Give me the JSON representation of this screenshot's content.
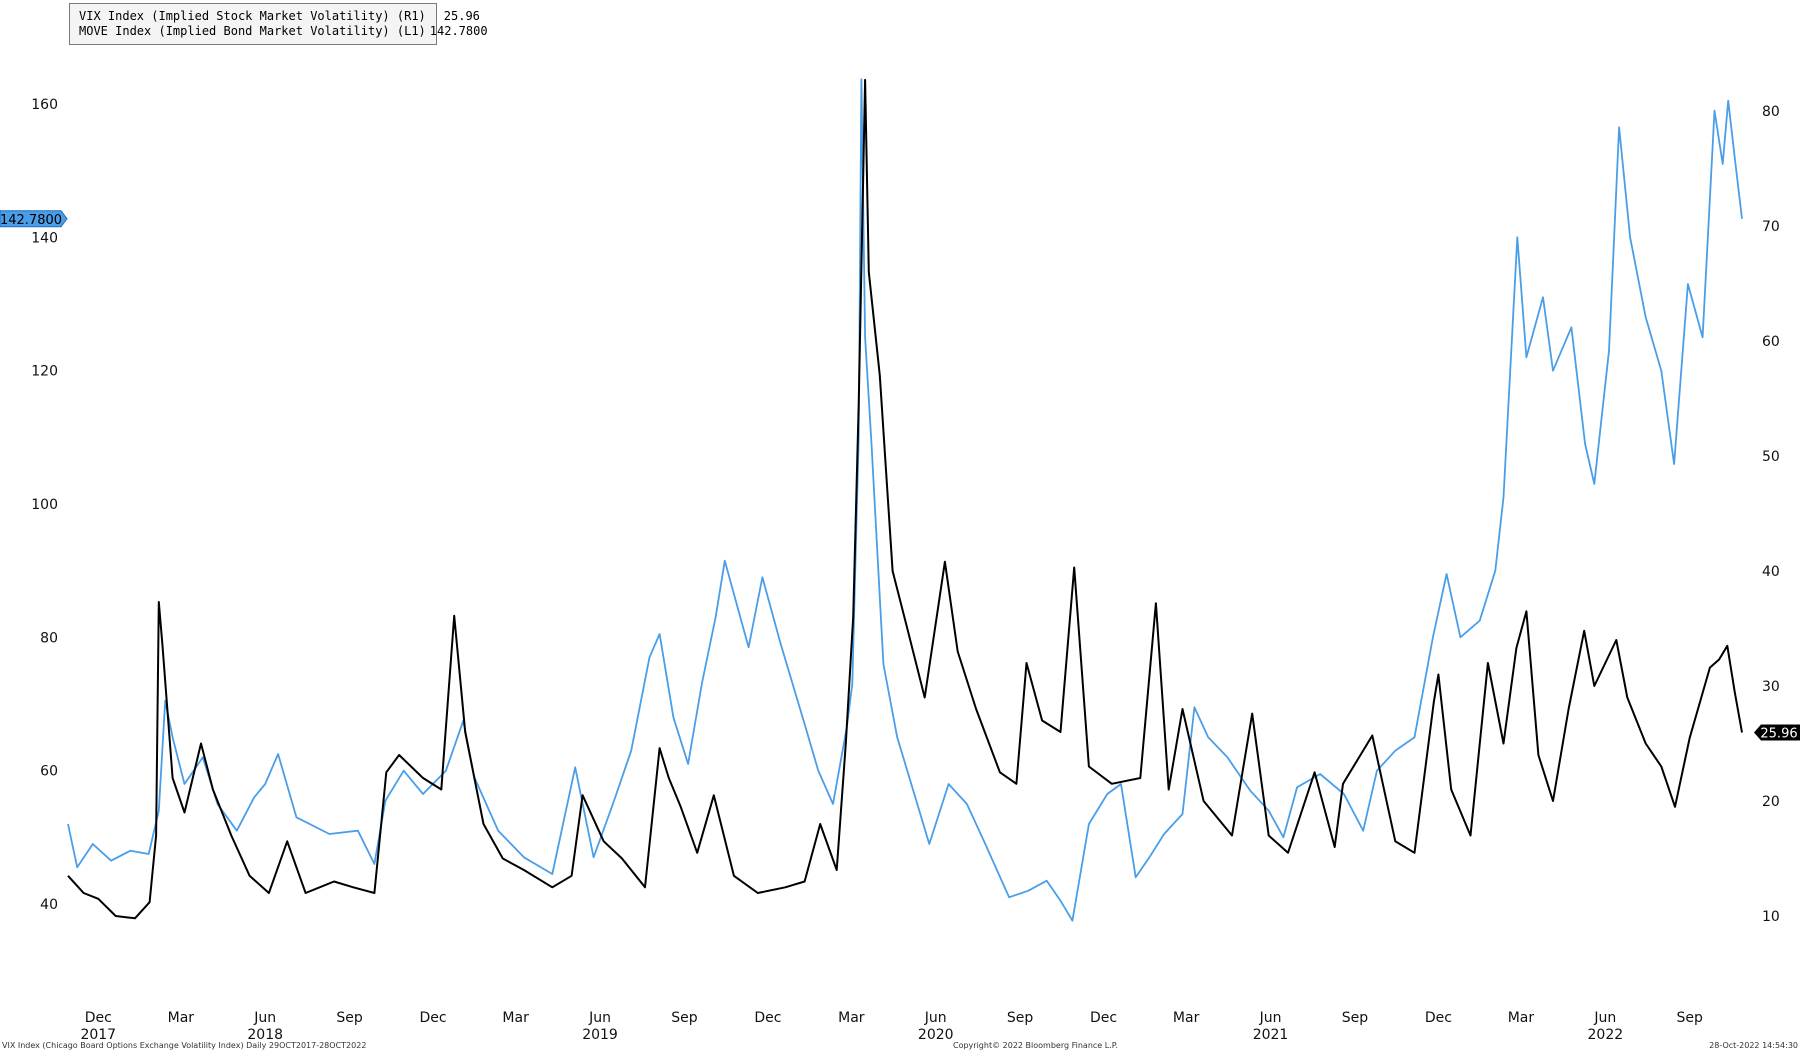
{
  "chart_data": {
    "type": "line",
    "title": "",
    "series": [
      {
        "name": "VIX Index (Implied Stock Market Volatility) (R1)",
        "axis": "right",
        "color": "#000000",
        "last_value": "25.96",
        "points": [
          [
            "2017-10-29",
            13.5
          ],
          [
            "2017-11-15",
            12.0
          ],
          [
            "2017-12-01",
            11.5
          ],
          [
            "2017-12-20",
            10.0
          ],
          [
            "2018-01-10",
            9.8
          ],
          [
            "2018-01-26",
            11.2
          ],
          [
            "2018-02-02",
            17.0
          ],
          [
            "2018-02-05",
            37.3
          ],
          [
            "2018-02-09",
            33.5
          ],
          [
            "2018-02-20",
            22.0
          ],
          [
            "2018-03-05",
            19.0
          ],
          [
            "2018-03-23",
            25.0
          ],
          [
            "2018-04-05",
            21.0
          ],
          [
            "2018-04-25",
            17.0
          ],
          [
            "2018-05-15",
            13.5
          ],
          [
            "2018-06-05",
            12.0
          ],
          [
            "2018-06-25",
            16.5
          ],
          [
            "2018-07-15",
            12.0
          ],
          [
            "2018-08-15",
            13.0
          ],
          [
            "2018-09-05",
            12.5
          ],
          [
            "2018-09-28",
            12.0
          ],
          [
            "2018-10-11",
            22.5
          ],
          [
            "2018-10-25",
            24.0
          ],
          [
            "2018-11-20",
            22.0
          ],
          [
            "2018-12-10",
            21.0
          ],
          [
            "2018-12-24",
            36.1
          ],
          [
            "2019-01-05",
            26.0
          ],
          [
            "2019-01-25",
            18.0
          ],
          [
            "2019-02-15",
            15.0
          ],
          [
            "2019-03-10",
            14.0
          ],
          [
            "2019-04-10",
            12.5
          ],
          [
            "2019-05-01",
            13.5
          ],
          [
            "2019-05-13",
            20.5
          ],
          [
            "2019-06-05",
            16.5
          ],
          [
            "2019-06-25",
            15.0
          ],
          [
            "2019-07-20",
            12.5
          ],
          [
            "2019-08-05",
            24.6
          ],
          [
            "2019-08-15",
            22.0
          ],
          [
            "2019-08-28",
            19.5
          ],
          [
            "2019-09-15",
            15.5
          ],
          [
            "2019-10-03",
            20.5
          ],
          [
            "2019-10-25",
            13.5
          ],
          [
            "2019-11-20",
            12.0
          ],
          [
            "2019-12-20",
            12.5
          ],
          [
            "2020-01-10",
            13.0
          ],
          [
            "2020-01-27",
            18.0
          ],
          [
            "2020-02-14",
            14.0
          ],
          [
            "2020-02-24",
            25.0
          ],
          [
            "2020-03-03",
            36.0
          ],
          [
            "2020-03-09",
            54.5
          ],
          [
            "2020-03-16",
            82.7
          ],
          [
            "2020-03-20",
            66.0
          ],
          [
            "2020-04-01",
            57.0
          ],
          [
            "2020-04-15",
            40.0
          ],
          [
            "2020-05-01",
            35.0
          ],
          [
            "2020-05-20",
            29.0
          ],
          [
            "2020-06-11",
            40.8
          ],
          [
            "2020-06-25",
            33.0
          ],
          [
            "2020-07-15",
            28.0
          ],
          [
            "2020-08-10",
            22.5
          ],
          [
            "2020-08-28",
            21.5
          ],
          [
            "2020-09-08",
            32.0
          ],
          [
            "2020-09-25",
            27.0
          ],
          [
            "2020-10-15",
            26.0
          ],
          [
            "2020-10-30",
            40.3
          ],
          [
            "2020-11-15",
            23.0
          ],
          [
            "2020-12-10",
            21.5
          ],
          [
            "2021-01-10",
            22.0
          ],
          [
            "2021-01-27",
            37.2
          ],
          [
            "2021-02-10",
            21.0
          ],
          [
            "2021-02-25",
            28.0
          ],
          [
            "2021-03-20",
            20.0
          ],
          [
            "2021-04-20",
            17.0
          ],
          [
            "2021-05-12",
            27.6
          ],
          [
            "2021-05-30",
            17.0
          ],
          [
            "2021-06-20",
            15.5
          ],
          [
            "2021-07-19",
            22.5
          ],
          [
            "2021-08-10",
            16.0
          ],
          [
            "2021-08-19",
            21.5
          ],
          [
            "2021-09-20",
            25.7
          ],
          [
            "2021-10-15",
            16.5
          ],
          [
            "2021-11-05",
            15.5
          ],
          [
            "2021-11-26",
            28.6
          ],
          [
            "2021-12-01",
            31.0
          ],
          [
            "2021-12-15",
            21.0
          ],
          [
            "2022-01-05",
            17.0
          ],
          [
            "2022-01-24",
            32.0
          ],
          [
            "2022-02-10",
            25.0
          ],
          [
            "2022-02-24",
            33.3
          ],
          [
            "2022-03-07",
            36.5
          ],
          [
            "2022-03-20",
            24.0
          ],
          [
            "2022-04-05",
            20.0
          ],
          [
            "2022-04-22",
            28.0
          ],
          [
            "2022-05-09",
            34.8
          ],
          [
            "2022-05-20",
            30.0
          ],
          [
            "2022-06-13",
            34.0
          ],
          [
            "2022-06-25",
            29.0
          ],
          [
            "2022-07-15",
            25.0
          ],
          [
            "2022-08-01",
            23.0
          ],
          [
            "2022-08-16",
            19.5
          ],
          [
            "2022-09-01",
            25.5
          ],
          [
            "2022-09-23",
            31.6
          ],
          [
            "2022-10-03",
            32.3
          ],
          [
            "2022-10-12",
            33.5
          ],
          [
            "2022-10-20",
            29.5
          ],
          [
            "2022-10-28",
            25.96
          ]
        ]
      },
      {
        "name": "MOVE Index (Implied Bond Market Volatility) (L1)",
        "axis": "left",
        "color": "#4a9ee8",
        "last_value": "142.7800",
        "points": [
          [
            "2017-10-29",
            52.0
          ],
          [
            "2017-11-08",
            45.5
          ],
          [
            "2017-11-25",
            49.0
          ],
          [
            "2017-12-15",
            46.5
          ],
          [
            "2018-01-05",
            48.0
          ],
          [
            "2018-01-25",
            47.5
          ],
          [
            "2018-02-05",
            54.0
          ],
          [
            "2018-02-12",
            70.5
          ],
          [
            "2018-02-20",
            65.0
          ],
          [
            "2018-03-05",
            58.0
          ],
          [
            "2018-03-25",
            62.0
          ],
          [
            "2018-04-10",
            55.0
          ],
          [
            "2018-05-01",
            51.0
          ],
          [
            "2018-05-20",
            56.0
          ],
          [
            "2018-06-01",
            58.0
          ],
          [
            "2018-06-15",
            62.5
          ],
          [
            "2018-07-05",
            53.0
          ],
          [
            "2018-08-10",
            50.5
          ],
          [
            "2018-09-10",
            51.0
          ],
          [
            "2018-09-28",
            46.0
          ],
          [
            "2018-10-10",
            55.5
          ],
          [
            "2018-10-30",
            60.0
          ],
          [
            "2018-11-20",
            56.5
          ],
          [
            "2018-12-15",
            60.0
          ],
          [
            "2019-01-03",
            67.5
          ],
          [
            "2019-01-15",
            59.0
          ],
          [
            "2019-02-10",
            51.0
          ],
          [
            "2019-03-10",
            47.0
          ],
          [
            "2019-04-10",
            44.5
          ],
          [
            "2019-05-05",
            60.5
          ],
          [
            "2019-05-25",
            47.0
          ],
          [
            "2019-06-15",
            55.0
          ],
          [
            "2019-07-05",
            63.0
          ],
          [
            "2019-07-25",
            77.0
          ],
          [
            "2019-08-05",
            80.5
          ],
          [
            "2019-08-20",
            68.0
          ],
          [
            "2019-09-05",
            61.0
          ],
          [
            "2019-09-20",
            73.0
          ],
          [
            "2019-10-05",
            83.0
          ],
          [
            "2019-10-15",
            91.5
          ],
          [
            "2019-10-25",
            86.5
          ],
          [
            "2019-11-10",
            78.5
          ],
          [
            "2019-11-25",
            89.0
          ],
          [
            "2019-12-15",
            79.0
          ],
          [
            "2020-01-10",
            67.0
          ],
          [
            "2020-01-25",
            60.0
          ],
          [
            "2020-02-10",
            55.0
          ],
          [
            "2020-02-25",
            66.5
          ],
          [
            "2020-03-02",
            73.0
          ],
          [
            "2020-03-09",
            110.0
          ],
          [
            "2020-03-12",
            163.7
          ],
          [
            "2020-03-16",
            125.0
          ],
          [
            "2020-03-23",
            109.0
          ],
          [
            "2020-04-05",
            76.0
          ],
          [
            "2020-04-20",
            65.0
          ],
          [
            "2020-05-01",
            60.0
          ],
          [
            "2020-05-25",
            49.0
          ],
          [
            "2020-06-15",
            58.0
          ],
          [
            "2020-07-05",
            55.0
          ],
          [
            "2020-07-25",
            49.0
          ],
          [
            "2020-08-20",
            41.0
          ],
          [
            "2020-09-10",
            42.0
          ],
          [
            "2020-09-30",
            43.5
          ],
          [
            "2020-10-15",
            40.5
          ],
          [
            "2020-10-28",
            37.5
          ],
          [
            "2020-11-15",
            52.0
          ],
          [
            "2020-12-05",
            56.5
          ],
          [
            "2020-12-20",
            58.0
          ],
          [
            "2021-01-05",
            44.0
          ],
          [
            "2021-01-20",
            47.0
          ],
          [
            "2021-02-05",
            50.5
          ],
          [
            "2021-02-25",
            53.5
          ],
          [
            "2021-03-10",
            69.5
          ],
          [
            "2021-03-25",
            65.0
          ],
          [
            "2021-04-15",
            62.0
          ],
          [
            "2021-05-10",
            57.0
          ],
          [
            "2021-05-30",
            54.0
          ],
          [
            "2021-06-15",
            50.0
          ],
          [
            "2021-06-30",
            57.5
          ],
          [
            "2021-07-25",
            59.5
          ],
          [
            "2021-08-20",
            56.5
          ],
          [
            "2021-09-10",
            51.0
          ],
          [
            "2021-09-25",
            60.0
          ],
          [
            "2021-10-15",
            63.0
          ],
          [
            "2021-11-05",
            65.0
          ],
          [
            "2021-11-25",
            80.0
          ],
          [
            "2021-12-10",
            89.5
          ],
          [
            "2021-12-25",
            80.0
          ],
          [
            "2022-01-15",
            82.5
          ],
          [
            "2022-02-01",
            90.0
          ],
          [
            "2022-02-10",
            101.0
          ],
          [
            "2022-02-25",
            140.0
          ],
          [
            "2022-03-07",
            122.0
          ],
          [
            "2022-03-25",
            131.0
          ],
          [
            "2022-04-05",
            120.0
          ],
          [
            "2022-04-25",
            126.5
          ],
          [
            "2022-05-10",
            109.0
          ],
          [
            "2022-05-20",
            103.0
          ],
          [
            "2022-06-05",
            123.0
          ],
          [
            "2022-06-16",
            156.5
          ],
          [
            "2022-06-28",
            140.0
          ],
          [
            "2022-07-15",
            128.0
          ],
          [
            "2022-08-01",
            120.0
          ],
          [
            "2022-08-15",
            106.0
          ],
          [
            "2022-08-30",
            133.0
          ],
          [
            "2022-09-15",
            125.0
          ],
          [
            "2022-09-28",
            159.0
          ],
          [
            "2022-10-07",
            151.0
          ],
          [
            "2022-10-13",
            160.5
          ],
          [
            "2022-10-20",
            152.0
          ],
          [
            "2022-10-28",
            142.78
          ]
        ]
      }
    ],
    "x_range": [
      "2017-10-29",
      "2022-10-28"
    ],
    "left_axis": {
      "min": 35,
      "max": 165,
      "ticks": [
        "40",
        "60",
        "80",
        "100",
        "120",
        "140",
        "160"
      ]
    },
    "right_axis": {
      "min": 6,
      "max": 82.5,
      "ticks": [
        "10",
        "20",
        "30",
        "40",
        "50",
        "60",
        "70",
        "80"
      ]
    },
    "x_ticks": [
      {
        "date": "2017-12-01",
        "label": "Dec"
      },
      {
        "date": "2018-03-01",
        "label": "Mar"
      },
      {
        "date": "2018-06-01",
        "label": "Jun"
      },
      {
        "date": "2018-09-01",
        "label": "Sep"
      },
      {
        "date": "2018-12-01",
        "label": "Dec"
      },
      {
        "date": "2019-03-01",
        "label": "Mar"
      },
      {
        "date": "2019-06-01",
        "label": "Jun"
      },
      {
        "date": "2019-09-01",
        "label": "Sep"
      },
      {
        "date": "2019-12-01",
        "label": "Dec"
      },
      {
        "date": "2020-03-01",
        "label": "Mar"
      },
      {
        "date": "2020-06-01",
        "label": "Jun"
      },
      {
        "date": "2020-09-01",
        "label": "Sep"
      },
      {
        "date": "2020-12-01",
        "label": "Dec"
      },
      {
        "date": "2021-03-01",
        "label": "Mar"
      },
      {
        "date": "2021-06-01",
        "label": "Jun"
      },
      {
        "date": "2021-09-01",
        "label": "Sep"
      },
      {
        "date": "2021-12-01",
        "label": "Dec"
      },
      {
        "date": "2022-03-01",
        "label": "Mar"
      },
      {
        "date": "2022-06-01",
        "label": "Jun"
      },
      {
        "date": "2022-09-01",
        "label": "Sep"
      }
    ],
    "year_labels": [
      {
        "date": "2017-12-01",
        "label": "2017"
      },
      {
        "date": "2018-06-01",
        "label": "2018"
      },
      {
        "date": "2019-06-01",
        "label": "2019"
      },
      {
        "date": "2020-06-01",
        "label": "2020"
      },
      {
        "date": "2021-06-01",
        "label": "2021"
      },
      {
        "date": "2022-06-01",
        "label": "2022"
      }
    ],
    "left_value_tag": "142.7800",
    "right_value_tag": "25.96",
    "grid": false,
    "legend_position": "top-left"
  },
  "legend": {
    "items": [
      {
        "label": "VIX Index (Implied Stock Market Volatility) (R1)",
        "value": "25.96",
        "color": "#000000"
      },
      {
        "label": "MOVE Index (Implied Bond Market Volatility) (L1)",
        "value": "142.7800",
        "color": "#4a9ee8"
      }
    ]
  },
  "footer": {
    "left": "VIX Index (Chicago Board Options Exchange Volatility Index)  Daily 29OCT2017-28OCT2022",
    "center": "Copyright© 2022 Bloomberg Finance L.P.",
    "right": "28-Oct-2022 14:54:30"
  }
}
